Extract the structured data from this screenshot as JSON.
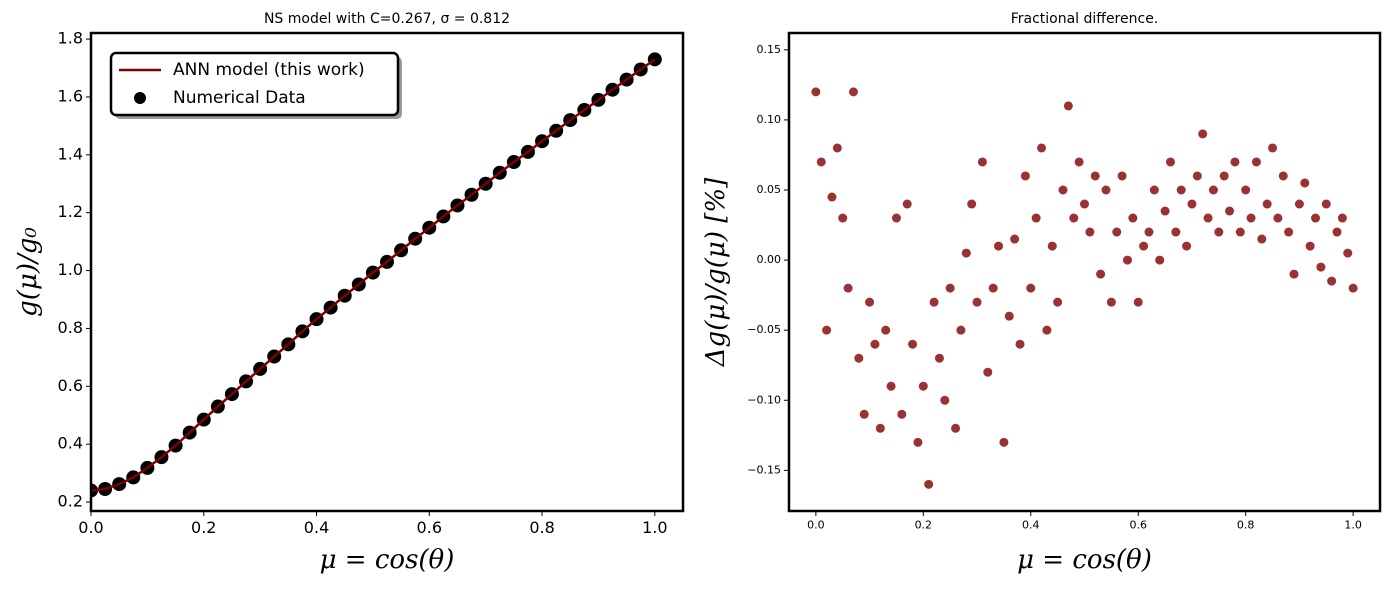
{
  "chart_data": [
    {
      "type": "line",
      "title": "NS model with C=0.267, σ = 0.812",
      "x_label": "μ = cos(θ)",
      "y_label": "g(μ)/g₀",
      "x": [
        0,
        0.025,
        0.05,
        0.075,
        0.1,
        0.125,
        0.15,
        0.175,
        0.2,
        0.225,
        0.25,
        0.275,
        0.3,
        0.325,
        0.35,
        0.375,
        0.4,
        0.425,
        0.45,
        0.475,
        0.5,
        0.525,
        0.55,
        0.575,
        0.6,
        0.625,
        0.65,
        0.675,
        0.7,
        0.725,
        0.75,
        0.775,
        0.8,
        0.825,
        0.85,
        0.875,
        0.9,
        0.925,
        0.95,
        0.975,
        1.0
      ],
      "series": [
        {
          "name": "Numerical Data",
          "kind": "scatter",
          "color": "#000000",
          "values": [
            0.24,
            0.245,
            0.262,
            0.285,
            0.318,
            0.355,
            0.395,
            0.44,
            0.485,
            0.53,
            0.573,
            0.617,
            0.66,
            0.703,
            0.745,
            0.79,
            0.832,
            0.872,
            0.913,
            0.952,
            0.993,
            1.03,
            1.07,
            1.11,
            1.148,
            1.187,
            1.225,
            1.262,
            1.3,
            1.338,
            1.375,
            1.41,
            1.447,
            1.483,
            1.52,
            1.555,
            1.59,
            1.625,
            1.66,
            1.695,
            1.73
          ]
        },
        {
          "name": "ANN model (this work)",
          "kind": "line",
          "color": "#7f0000",
          "values": [
            0.24,
            0.245,
            0.262,
            0.285,
            0.318,
            0.355,
            0.395,
            0.44,
            0.485,
            0.53,
            0.573,
            0.617,
            0.66,
            0.703,
            0.745,
            0.79,
            0.832,
            0.872,
            0.913,
            0.952,
            0.993,
            1.03,
            1.07,
            1.11,
            1.148,
            1.187,
            1.225,
            1.262,
            1.3,
            1.338,
            1.375,
            1.41,
            1.447,
            1.483,
            1.52,
            1.555,
            1.59,
            1.625,
            1.66,
            1.695,
            1.73
          ]
        }
      ],
      "legend": "upper left",
      "xlim": [
        0,
        1.05
      ],
      "xticks": [
        {
          "value": 0,
          "label": "0.0"
        },
        0.2,
        0.4,
        0.6,
        0.8,
        {
          "value": 1,
          "label": "1.0"
        }
      ],
      "ylim": [
        0.169,
        1.821
      ],
      "yticks": [
        0.2,
        0.4,
        0.6,
        0.8,
        {
          "value": 1,
          "label": "1.0"
        },
        1.2,
        1.4,
        1.6,
        1.8
      ]
    },
    {
      "type": "scatter",
      "title": "Fractional difference.",
      "x_label": "μ = cos(θ)",
      "y_label": "Δg(μ)/g(μ)  [%]",
      "x": [
        0,
        0.01,
        0.02,
        0.03,
        0.04,
        0.05,
        0.06,
        0.07,
        0.08,
        0.09,
        0.1,
        0.11,
        0.12,
        0.13,
        0.14,
        0.15,
        0.16,
        0.17,
        0.18,
        0.19,
        0.2,
        0.21,
        0.22,
        0.23,
        0.24,
        0.25,
        0.26,
        0.27,
        0.28,
        0.29,
        0.3,
        0.31,
        0.32,
        0.33,
        0.34,
        0.35,
        0.36,
        0.37,
        0.38,
        0.39,
        0.4,
        0.41,
        0.42,
        0.43,
        0.44,
        0.45,
        0.46,
        0.47,
        0.48,
        0.49,
        0.5,
        0.51,
        0.52,
        0.53,
        0.54,
        0.55,
        0.56,
        0.57,
        0.58,
        0.59,
        0.6,
        0.61,
        0.62,
        0.63,
        0.64,
        0.65,
        0.66,
        0.67,
        0.68,
        0.69,
        0.7,
        0.71,
        0.72,
        0.73,
        0.74,
        0.75,
        0.76,
        0.77,
        0.78,
        0.79,
        0.8,
        0.81,
        0.82,
        0.83,
        0.84,
        0.85,
        0.86,
        0.87,
        0.88,
        0.89,
        0.9,
        0.91,
        0.92,
        0.93,
        0.94,
        0.95,
        0.96,
        0.97,
        0.98,
        0.99,
        1.0
      ],
      "series": [
        {
          "name": "Fractional difference",
          "color": "#7f0000",
          "values": [
            0.12,
            0.07,
            -0.05,
            0.045,
            0.08,
            0.03,
            -0.02,
            0.12,
            -0.07,
            -0.11,
            -0.03,
            -0.06,
            -0.12,
            -0.05,
            -0.09,
            0.03,
            -0.11,
            0.04,
            -0.06,
            -0.13,
            -0.09,
            -0.16,
            -0.03,
            -0.07,
            -0.1,
            -0.02,
            -0.12,
            -0.05,
            0.005,
            0.04,
            -0.03,
            0.07,
            -0.08,
            -0.02,
            0.01,
            -0.13,
            -0.04,
            0.015,
            -0.06,
            0.06,
            -0.02,
            0.03,
            0.08,
            -0.05,
            0.01,
            -0.03,
            0.05,
            0.11,
            0.03,
            0.07,
            0.04,
            0.02,
            0.06,
            -0.01,
            0.05,
            -0.03,
            0.02,
            0.06,
            0,
            0.03,
            -0.03,
            0.01,
            0.02,
            0.05,
            0,
            0.035,
            0.07,
            0.02,
            0.05,
            0.01,
            0.04,
            0.06,
            0.09,
            0.03,
            0.05,
            0.02,
            0.06,
            0.035,
            0.07,
            0.02,
            0.05,
            0.03,
            0.07,
            0.015,
            0.04,
            0.08,
            0.03,
            0.06,
            0.02,
            -0.01,
            0.04,
            0.055,
            0.01,
            0.03,
            -0.005,
            0.04,
            -0.015,
            0.02,
            0.03,
            0.005,
            -0.02
          ]
        }
      ],
      "xlim": [
        -0.05,
        1.05
      ],
      "xticks": [
        {
          "value": 0,
          "label": "0.0"
        },
        0.2,
        0.4,
        0.6,
        0.8,
        {
          "value": 1,
          "label": "1.0"
        }
      ],
      "ylim": [
        -0.179,
        0.162
      ],
      "yticks": [
        {
          "value": -0.15,
          "label": "−0.15"
        },
        {
          "value": -0.1,
          "label": "−0.10"
        },
        {
          "value": -0.05,
          "label": "−0.05"
        },
        {
          "value": 0,
          "label": "0.00"
        },
        0.05,
        {
          "value": 0.1,
          "label": "0.10"
        },
        0.15
      ]
    }
  ]
}
